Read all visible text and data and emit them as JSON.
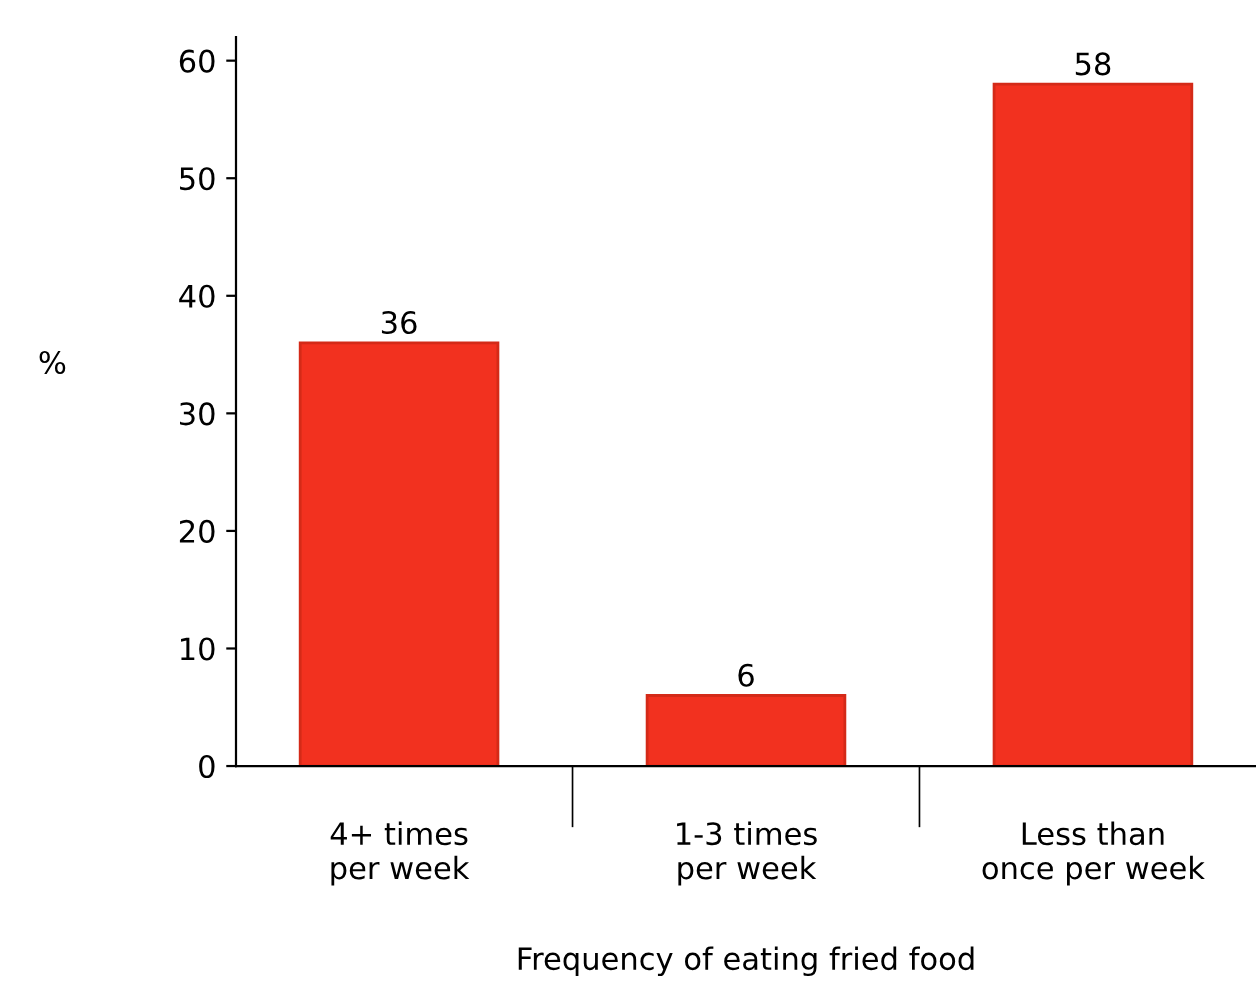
{
  "chart_data": {
    "type": "bar",
    "xlabel": "Frequency of eating fried food",
    "ylabel": "%",
    "categories": [
      "4+ times\nper week",
      "1-3 times\nper week",
      "Less than\nonce per week"
    ],
    "values": [
      36,
      6,
      58
    ],
    "color": "#f2311f",
    "ylim": [
      0,
      62
    ],
    "yticks": [
      0,
      10,
      20,
      30,
      40,
      50,
      60
    ],
    "data_labels": true,
    "grid": false,
    "legend": false
  }
}
